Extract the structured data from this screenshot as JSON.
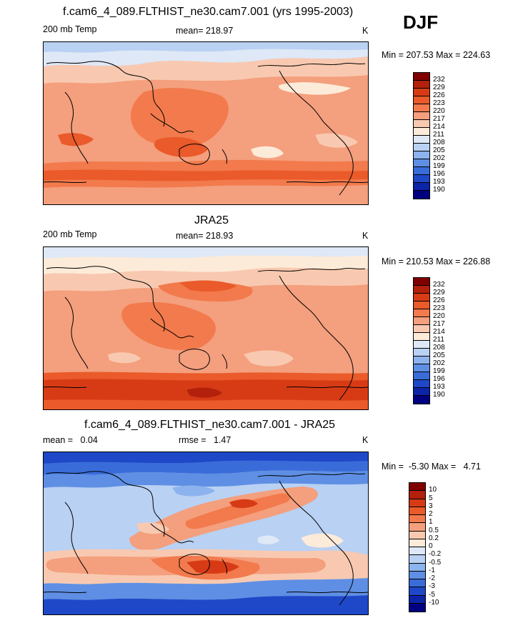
{
  "season": "DJF",
  "panels": [
    {
      "title": "f.cam6_4_089.FLTHIST_ne30.cam7.001 (yrs 1995-2003)",
      "left_label": "200 mb Temp",
      "mid_label": "mean= 218.97",
      "right_label": "K",
      "minmax": "Min = 207.53 Max = 224.63",
      "colorbar": {
        "colors": [
          "#800000",
          "#b3200b",
          "#d73b16",
          "#ea5a2a",
          "#f27a4c",
          "#f49f7d",
          "#f8c9b0",
          "#fdebd9",
          "#dfe8f6",
          "#b9d1f3",
          "#8db3ee",
          "#5f8fe4",
          "#3a6cd9",
          "#1f48c8",
          "#0b24a8",
          "#000080"
        ],
        "labels": [
          "232",
          "229",
          "226",
          "223",
          "220",
          "217",
          "214",
          "211",
          "208",
          "205",
          "202",
          "199",
          "196",
          "193",
          "190"
        ]
      }
    },
    {
      "title": "JRA25",
      "left_label": "200 mb Temp",
      "mid_label": "mean= 218.93",
      "right_label": "K",
      "minmax": "Min = 210.53 Max = 226.88",
      "colorbar": {
        "colors": [
          "#800000",
          "#b3200b",
          "#d73b16",
          "#ea5a2a",
          "#f27a4c",
          "#f49f7d",
          "#f8c9b0",
          "#fdebd9",
          "#dfe8f6",
          "#b9d1f3",
          "#8db3ee",
          "#5f8fe4",
          "#3a6cd9",
          "#1f48c8",
          "#0b24a8",
          "#000080"
        ],
        "labels": [
          "232",
          "229",
          "226",
          "223",
          "220",
          "217",
          "214",
          "211",
          "208",
          "205",
          "202",
          "199",
          "196",
          "193",
          "190"
        ]
      }
    },
    {
      "title": "f.cam6_4_089.FLTHIST_ne30.cam7.001 - JRA25",
      "left_label": "mean =   0.04",
      "mid_label": "rmse =   1.47",
      "right_label": "K",
      "minmax": "Min =  -5.30 Max =   4.71",
      "colorbar": {
        "colors": [
          "#800000",
          "#b3200b",
          "#d73b16",
          "#ea5a2a",
          "#f27a4c",
          "#f49f7d",
          "#f8c9b0",
          "#fdebd9",
          "#dfe8f6",
          "#b9d1f3",
          "#8db3ee",
          "#5f8fe4",
          "#3a6cd9",
          "#1f48c8",
          "#0b24a8",
          "#000080"
        ],
        "labels": [
          "10",
          "5",
          "3",
          "2",
          "1",
          "0.5",
          "0.2",
          "0",
          "-0.2",
          "-0.5",
          "-1",
          "-2",
          "-3",
          "-5",
          "-10"
        ]
      }
    }
  ]
}
